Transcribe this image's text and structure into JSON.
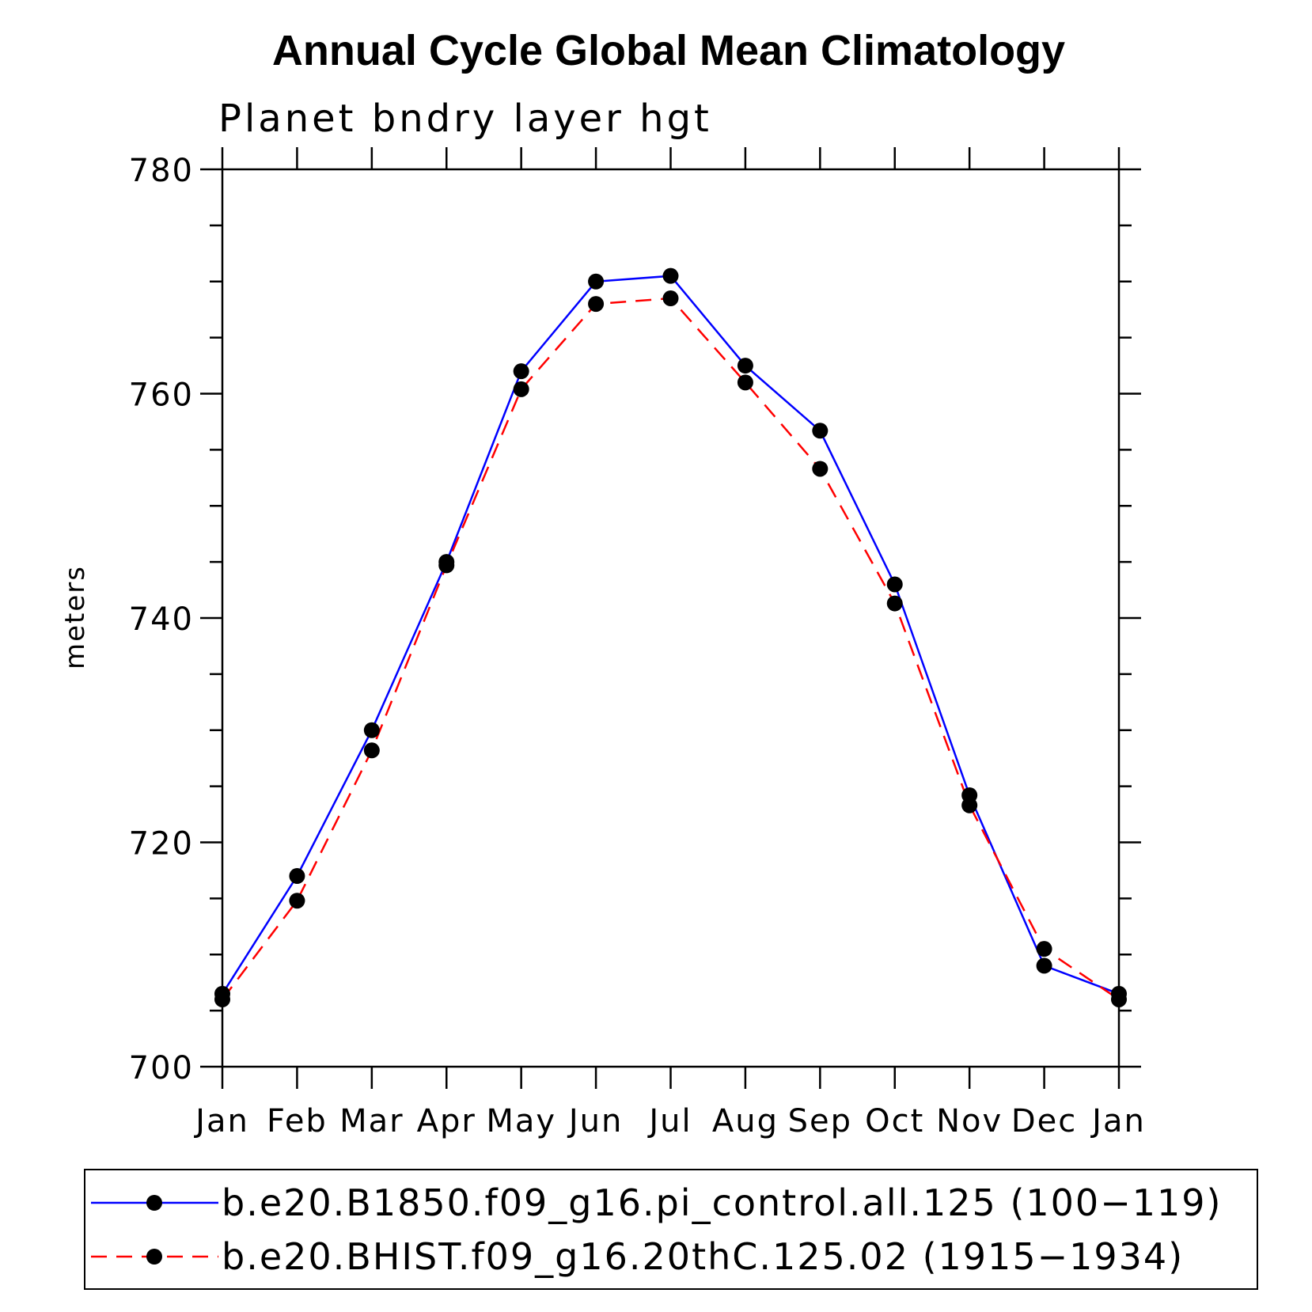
{
  "chart_data": {
    "type": "line",
    "title": "Annual Cycle Global Mean Climatology",
    "subtitle": "Planet bndry layer hgt",
    "xlabel": "",
    "ylabel": "meters",
    "categories": [
      "Jan",
      "Feb",
      "Mar",
      "Apr",
      "May",
      "Jun",
      "Jul",
      "Aug",
      "Sep",
      "Oct",
      "Nov",
      "Dec",
      "Jan"
    ],
    "ylim": [
      700,
      780
    ],
    "yticks": [
      "700",
      "720",
      "740",
      "760",
      "780"
    ],
    "y_minor_step": 5,
    "grid": false,
    "legend_position": "bottom",
    "series": [
      {
        "name": "b.e20.B1850.f09_g16.pi_control.all.125 (100−119)",
        "color": "#0000ff",
        "style": "solid",
        "values": [
          706.5,
          717.0,
          730.0,
          745.0,
          762.0,
          770.0,
          770.5,
          762.5,
          756.7,
          743.0,
          724.2,
          709.0,
          706.5
        ]
      },
      {
        "name": "b.e20.BHIST.f09_g16.20thC.125.02 (1915−1934)",
        "color": "#ff0000",
        "style": "dashed",
        "values": [
          706.0,
          714.8,
          728.2,
          744.7,
          760.4,
          768.0,
          768.5,
          761.0,
          753.3,
          741.3,
          723.3,
          710.5,
          706.0
        ]
      }
    ]
  }
}
